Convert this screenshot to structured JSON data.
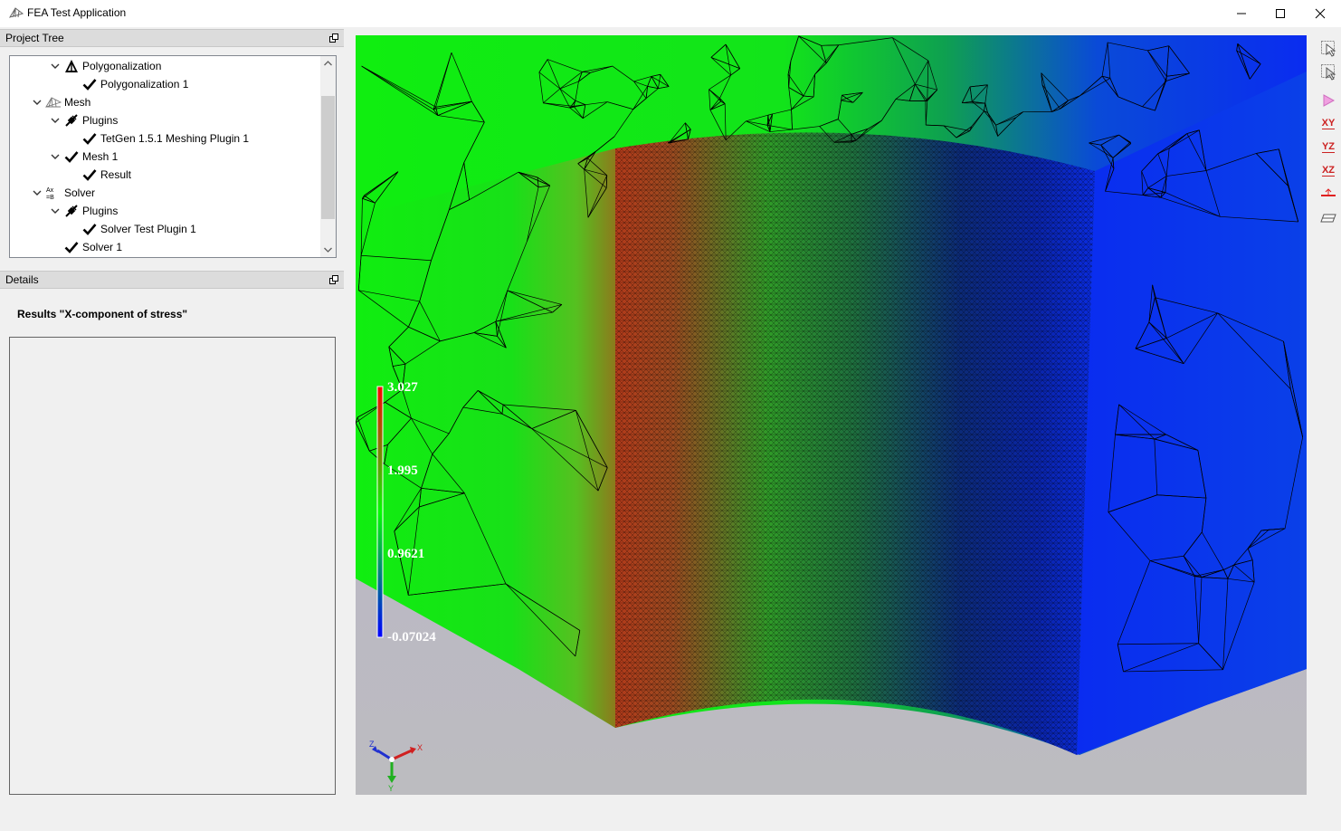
{
  "window": {
    "title": "FEA Test Application"
  },
  "project_tree": {
    "header": "Project Tree",
    "items": [
      {
        "label": "Polygonalization",
        "icon": "polygon-icon",
        "level": 2,
        "expanded": true
      },
      {
        "label": "Polygonalization 1",
        "icon": "check-icon",
        "level": 3
      },
      {
        "label": "Mesh",
        "icon": "mesh-icon",
        "level": 1,
        "expanded": true
      },
      {
        "label": "Plugins",
        "icon": "plugin-icon",
        "level": 2,
        "expanded": true
      },
      {
        "label": "TetGen 1.5.1 Meshing Plugin 1",
        "icon": "check-icon",
        "level": 3
      },
      {
        "label": "Mesh 1",
        "icon": "check-icon",
        "level": 2,
        "expanded": true
      },
      {
        "label": "Result",
        "icon": "check-icon",
        "level": 3
      },
      {
        "label": "Solver",
        "icon": "solver-icon",
        "level": 1,
        "expanded": true
      },
      {
        "label": "Plugins",
        "icon": "plugin-icon",
        "level": 2,
        "expanded": true
      },
      {
        "label": "Solver Test Plugin 1",
        "icon": "check-icon",
        "level": 3
      },
      {
        "label": "Solver 1",
        "icon": "check-icon",
        "level": 2
      }
    ]
  },
  "details": {
    "header": "Details",
    "title": "Results \"X-component of stress\""
  },
  "viewport": {
    "legend": {
      "labels": [
        "3.027",
        "1.995",
        "0.9621",
        "-0.07024"
      ],
      "colors": [
        "#ff0000",
        "#00ff00",
        "#0000ff"
      ]
    },
    "axes": {
      "x": "X",
      "y": "Y",
      "z": "Z"
    }
  },
  "toolbar": {
    "buttons": [
      {
        "name": "select-icon"
      },
      {
        "name": "select-area-icon"
      },
      {
        "name": "iso-view-icon"
      },
      {
        "name": "view-xy-button",
        "label": "XY"
      },
      {
        "name": "view-yz-button",
        "label": "YZ"
      },
      {
        "name": "view-xz-button",
        "label": "XZ"
      },
      {
        "name": "section-plane-icon"
      },
      {
        "name": "clip-plane-icon"
      }
    ]
  },
  "colors": {
    "accent": "#0078d7",
    "mesh_green": "#12ee12",
    "mesh_blue": "#0a2cf0",
    "mesh_red": "#b23a1a",
    "background": "#b9b2c8"
  }
}
